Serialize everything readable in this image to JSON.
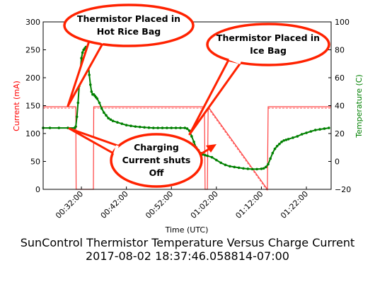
{
  "chart_data": {
    "type": "line",
    "title": "SunControl Thermistor Temperature Versus Charge Current",
    "subtitle": "2017-08-02 18:37:46.058814-07:00",
    "xlabel": "Time (UTC)",
    "ylabel_left": "Current (mA)",
    "ylabel_right": "Temperature (C)",
    "ylim_left": [
      0,
      300
    ],
    "ylim_right": [
      -20,
      100
    ],
    "xlim": [
      "00:23:30",
      "01:27:30"
    ],
    "x_tick_labels": [
      "00:32:00",
      "00:42:00",
      "00:52:00",
      "01:02:00",
      "01:12:00",
      "01:22:00"
    ],
    "y_left_ticks": [
      "0",
      "50",
      "100",
      "150",
      "200",
      "250",
      "300"
    ],
    "y_right_ticks": [
      "−20",
      "0",
      "20",
      "40",
      "60",
      "80",
      "100"
    ],
    "grid": false,
    "colors": {
      "current": "#ff0000",
      "temperature": "#008000",
      "annotation": "#ff2200"
    },
    "series": [
      {
        "axis": "right",
        "color": "#008000",
        "x": [
          "00:23:30",
          "00:25:00",
          "00:27:00",
          "00:29:00",
          "00:30:30",
          "00:30:45",
          "00:31:00",
          "00:31:15",
          "00:31:30",
          "00:31:45",
          "00:32:00",
          "00:32:15",
          "00:32:30",
          "00:32:45",
          "00:33:00",
          "00:33:15",
          "00:33:30",
          "00:33:45",
          "00:34:00",
          "00:34:15",
          "00:34:30",
          "00:34:45",
          "00:35:00",
          "00:35:15",
          "00:35:30",
          "00:36:00",
          "00:36:30",
          "00:37:00",
          "00:37:30",
          "00:38:00",
          "00:38:30",
          "00:39:00",
          "00:40:00",
          "00:41:00",
          "00:42:00",
          "00:43:00",
          "00:44:00",
          "00:45:00",
          "00:46:00",
          "00:47:00",
          "00:48:00",
          "00:49:00",
          "00:50:00",
          "00:51:00",
          "00:52:00",
          "00:53:00",
          "00:54:00",
          "00:55:00",
          "00:55:30",
          "00:56:00",
          "00:56:30",
          "00:57:00",
          "00:57:30",
          "00:58:00",
          "00:58:30",
          "00:59:00",
          "00:59:30",
          "01:00:00",
          "01:01:00",
          "01:02:00",
          "01:03:00",
          "01:04:00",
          "01:05:00",
          "01:06:00",
          "01:07:00",
          "01:08:00",
          "01:09:00",
          "01:10:00",
          "01:11:00",
          "01:12:00",
          "01:12:30",
          "01:13:00",
          "01:13:30",
          "01:14:00",
          "01:14:30",
          "01:15:00",
          "01:15:30",
          "01:16:00",
          "01:16:30",
          "01:17:00",
          "01:17:30",
          "01:18:00",
          "01:19:00",
          "01:20:00",
          "01:21:00",
          "01:22:00",
          "01:23:00",
          "01:24:00",
          "01:25:00",
          "01:26:00",
          "01:27:00"
        ],
        "values": [
          24,
          24,
          24,
          24,
          24,
          25,
          32,
          42,
          54,
          65,
          74,
          78,
          80,
          81,
          82,
          80,
          72,
          62,
          55,
          50,
          48,
          48,
          47,
          46,
          45,
          42,
          38,
          35,
          33,
          31,
          30,
          29,
          28,
          27,
          26,
          25.5,
          25,
          24.7,
          24.4,
          24.2,
          24,
          24,
          24,
          24,
          24,
          24,
          24,
          24,
          23.5,
          22,
          18,
          14,
          10,
          8,
          6,
          5,
          4.5,
          4,
          3,
          1,
          -1,
          -2.5,
          -3.5,
          -4,
          -4.5,
          -5,
          -5.3,
          -5.5,
          -5.5,
          -5.3,
          -5,
          -4,
          -2,
          2,
          6,
          9,
          11,
          12.5,
          14,
          15,
          15.5,
          16,
          17,
          18,
          19.5,
          20.5,
          21.5,
          22.5,
          23,
          23.5,
          24
        ]
      },
      {
        "axis": "left",
        "color": "#ff0000",
        "description_levels": {
          "charging": 148,
          "off": 0
        },
        "x": [
          "00:23:30",
          "00:30:45",
          "00:30:50",
          "00:34:40",
          "00:34:45",
          "00:59:20",
          "00:59:30",
          "01:00:00",
          "01:00:10",
          "01:13:20",
          "01:13:30",
          "01:27:30"
        ],
        "values": [
          148,
          148,
          0,
          0,
          148,
          148,
          0,
          0,
          148,
          0,
          148,
          148
        ]
      }
    ],
    "annotations": [
      {
        "text_lines": [
          "Thermistor Placed in",
          "Hot Rice Bag"
        ]
      },
      {
        "text_lines": [
          "Thermistor Placed in",
          "Ice Bag"
        ]
      },
      {
        "text_lines": [
          "Charging",
          "Current shuts",
          "Off"
        ]
      }
    ]
  }
}
